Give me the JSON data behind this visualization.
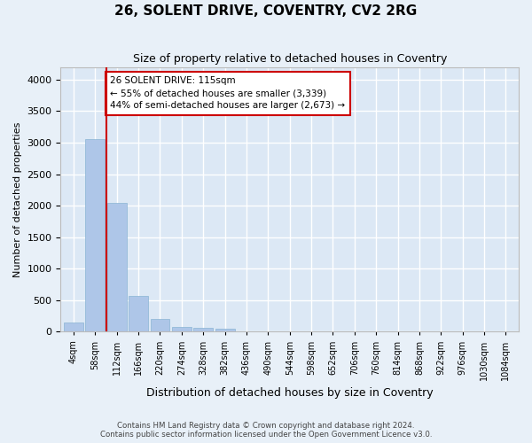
{
  "title": "26, SOLENT DRIVE, COVENTRY, CV2 2RG",
  "subtitle": "Size of property relative to detached houses in Coventry",
  "xlabel": "Distribution of detached houses by size in Coventry",
  "ylabel": "Number of detached properties",
  "bar_color": "#aec6e8",
  "bar_edge_color": "#8ab4d4",
  "background_color": "#dce8f5",
  "grid_color": "#ffffff",
  "vline_color": "#cc0000",
  "vline_x": 1,
  "annotation_text": "26 SOLENT DRIVE: 115sqm\n← 55% of detached houses are smaller (3,339)\n44% of semi-detached houses are larger (2,673) →",
  "annotation_box_color": "#ffffff",
  "annotation_box_edge": "#cc0000",
  "bins": [
    "4sqm",
    "58sqm",
    "112sqm",
    "166sqm",
    "220sqm",
    "274sqm",
    "328sqm",
    "382sqm",
    "436sqm",
    "490sqm",
    "544sqm",
    "598sqm",
    "652sqm",
    "706sqm",
    "760sqm",
    "814sqm",
    "868sqm",
    "922sqm",
    "976sqm",
    "1030sqm",
    "1084sqm"
  ],
  "values": [
    150,
    3050,
    2050,
    570,
    200,
    80,
    60,
    45,
    0,
    0,
    0,
    0,
    0,
    0,
    0,
    0,
    0,
    0,
    0,
    0,
    0
  ],
  "ylim": [
    0,
    4200
  ],
  "yticks": [
    0,
    500,
    1000,
    1500,
    2000,
    2500,
    3000,
    3500,
    4000
  ],
  "footer1": "Contains HM Land Registry data © Crown copyright and database right 2024.",
  "footer2": "Contains public sector information licensed under the Open Government Licence v3.0."
}
